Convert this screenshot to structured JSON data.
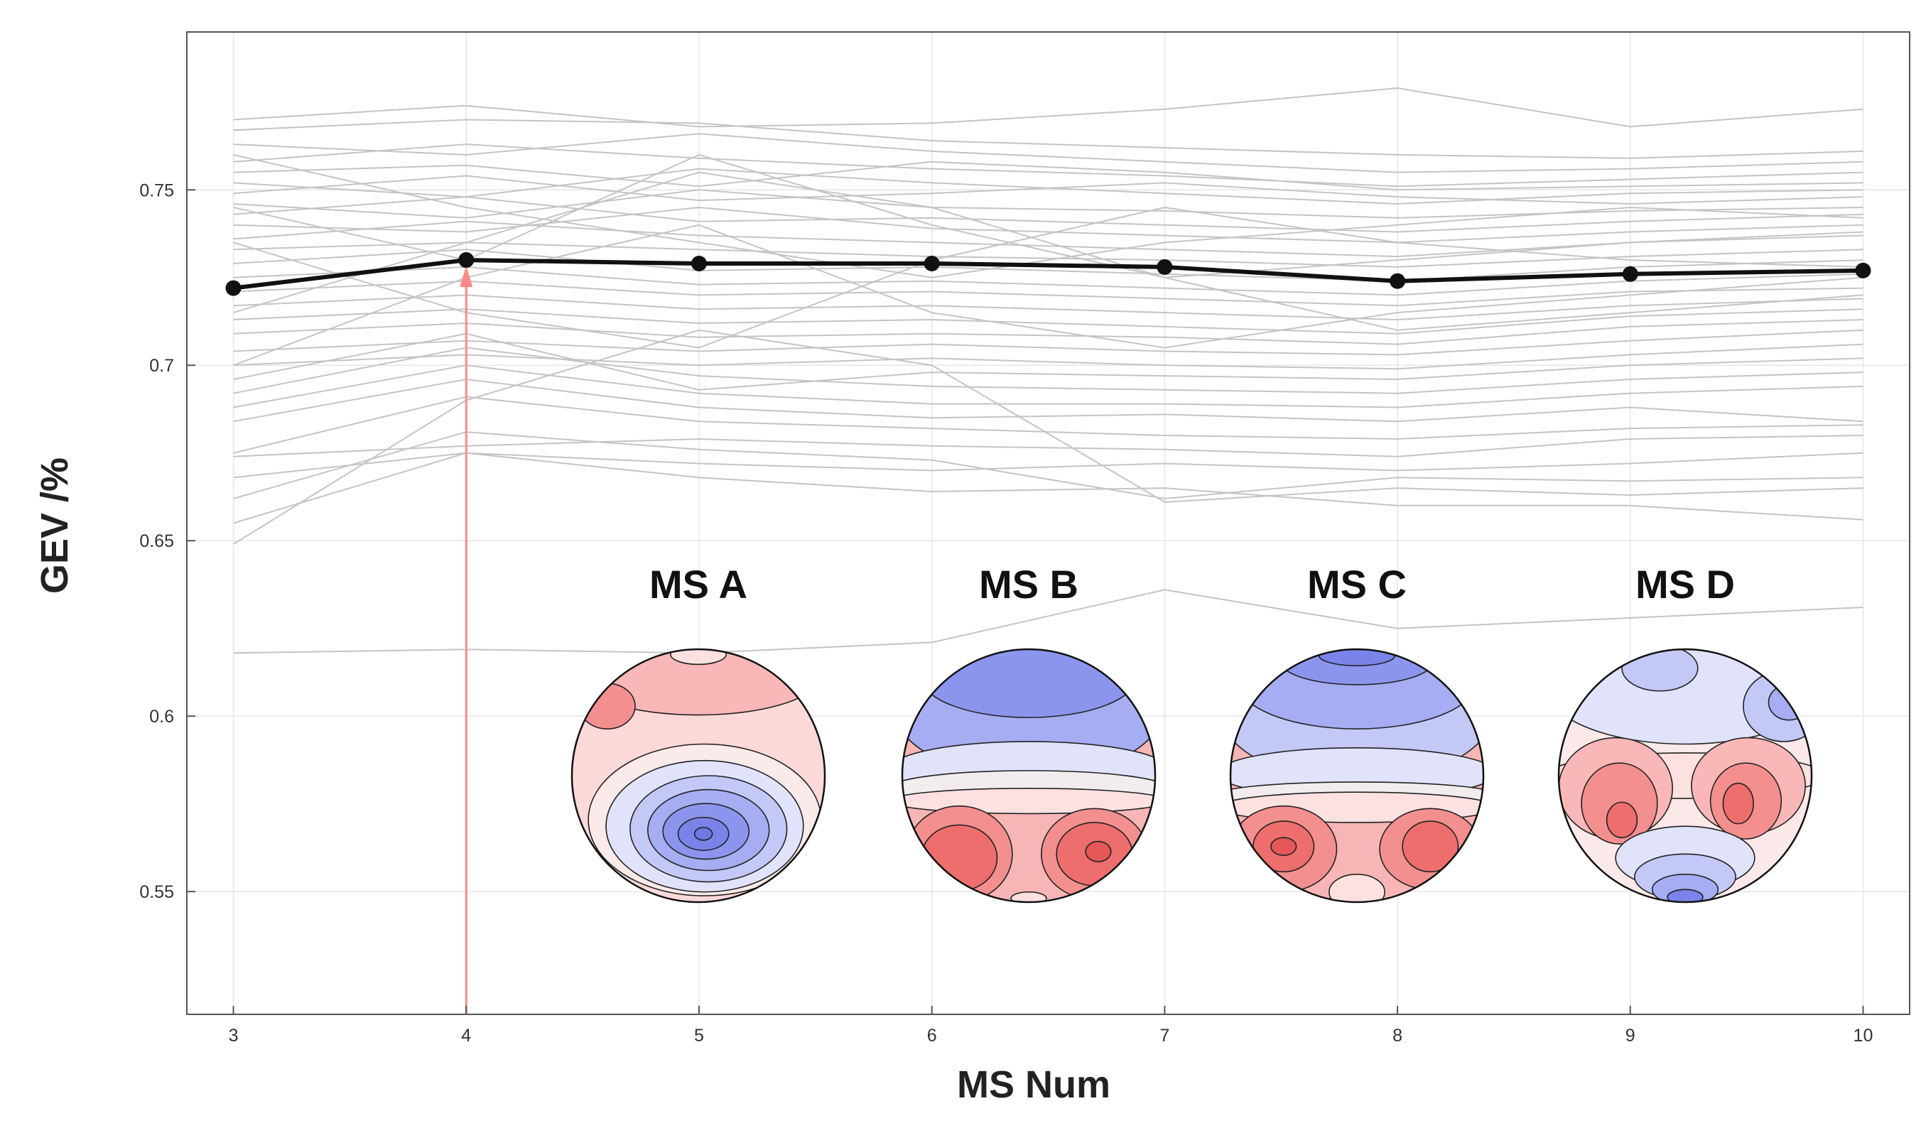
{
  "chart_data": {
    "type": "line",
    "title": "",
    "xlabel": "MS Num",
    "ylabel": "GEV /%",
    "x": [
      3,
      4,
      5,
      6,
      7,
      8,
      9,
      10
    ],
    "xlim": [
      2.8,
      10.2
    ],
    "ylim": [
      0.515,
      0.795
    ],
    "yticks": [
      0.55,
      0.6,
      0.65,
      0.7,
      0.75
    ],
    "ytick_labels": [
      "0.55",
      "0.6",
      "0.65",
      "0.7",
      "0.75"
    ],
    "xtick_labels": [
      "3",
      "4",
      "5",
      "6",
      "7",
      "8",
      "9",
      "10"
    ],
    "grid": true,
    "mean_series": {
      "name": "mean",
      "color": "#111111",
      "values": [
        0.722,
        0.73,
        0.729,
        0.729,
        0.728,
        0.724,
        0.726,
        0.727
      ]
    },
    "subject_series_color": "#c4c4c4",
    "subject_series": [
      [
        0.77,
        0.774,
        0.768,
        0.769,
        0.773,
        0.779,
        0.768,
        0.773
      ],
      [
        0.767,
        0.77,
        0.769,
        0.764,
        0.762,
        0.76,
        0.759,
        0.761
      ],
      [
        0.763,
        0.76,
        0.766,
        0.761,
        0.758,
        0.755,
        0.756,
        0.758
      ],
      [
        0.758,
        0.763,
        0.759,
        0.756,
        0.754,
        0.751,
        0.753,
        0.755
      ],
      [
        0.755,
        0.757,
        0.751,
        0.758,
        0.755,
        0.75,
        0.751,
        0.752
      ],
      [
        0.752,
        0.748,
        0.756,
        0.752,
        0.749,
        0.746,
        0.749,
        0.75
      ],
      [
        0.749,
        0.754,
        0.747,
        0.749,
        0.752,
        0.748,
        0.746,
        0.748
      ],
      [
        0.746,
        0.742,
        0.75,
        0.745,
        0.744,
        0.742,
        0.744,
        0.745
      ],
      [
        0.743,
        0.748,
        0.741,
        0.742,
        0.74,
        0.738,
        0.741,
        0.743
      ],
      [
        0.74,
        0.738,
        0.745,
        0.739,
        0.737,
        0.735,
        0.738,
        0.74
      ],
      [
        0.736,
        0.741,
        0.737,
        0.735,
        0.733,
        0.731,
        0.735,
        0.737
      ],
      [
        0.733,
        0.735,
        0.733,
        0.731,
        0.73,
        0.728,
        0.731,
        0.733
      ],
      [
        0.729,
        0.733,
        0.727,
        0.728,
        0.726,
        0.724,
        0.728,
        0.73
      ],
      [
        0.725,
        0.728,
        0.723,
        0.724,
        0.722,
        0.72,
        0.724,
        0.726
      ],
      [
        0.721,
        0.724,
        0.72,
        0.721,
        0.719,
        0.717,
        0.721,
        0.722
      ],
      [
        0.717,
        0.72,
        0.716,
        0.717,
        0.715,
        0.713,
        0.717,
        0.719
      ],
      [
        0.713,
        0.716,
        0.712,
        0.713,
        0.711,
        0.709,
        0.714,
        0.716
      ],
      [
        0.709,
        0.712,
        0.708,
        0.709,
        0.708,
        0.706,
        0.711,
        0.713
      ],
      [
        0.704,
        0.707,
        0.704,
        0.706,
        0.704,
        0.703,
        0.707,
        0.71
      ],
      [
        0.7,
        0.703,
        0.7,
        0.702,
        0.7,
        0.699,
        0.703,
        0.706
      ],
      [
        0.696,
        0.709,
        0.693,
        0.698,
        0.697,
        0.696,
        0.7,
        0.702
      ],
      [
        0.692,
        0.705,
        0.697,
        0.694,
        0.693,
        0.692,
        0.696,
        0.698
      ],
      [
        0.688,
        0.7,
        0.692,
        0.689,
        0.689,
        0.688,
        0.692,
        0.694
      ],
      [
        0.684,
        0.696,
        0.688,
        0.685,
        0.686,
        0.684,
        0.688,
        0.684
      ],
      [
        0.675,
        0.691,
        0.684,
        0.682,
        0.68,
        0.679,
        0.682,
        0.683
      ],
      [
        0.674,
        0.677,
        0.679,
        0.677,
        0.676,
        0.674,
        0.679,
        0.68
      ],
      [
        0.668,
        0.675,
        0.672,
        0.67,
        0.672,
        0.67,
        0.672,
        0.675
      ],
      [
        0.662,
        0.681,
        0.676,
        0.673,
        0.662,
        0.668,
        0.667,
        0.668
      ],
      [
        0.655,
        0.675,
        0.668,
        0.664,
        0.665,
        0.66,
        0.66,
        0.656
      ],
      [
        0.649,
        0.69,
        0.71,
        0.7,
        0.661,
        0.665,
        0.663,
        0.665
      ],
      [
        0.618,
        0.619,
        0.618,
        0.621,
        0.636,
        0.625,
        0.628,
        0.631
      ],
      [
        0.7,
        0.725,
        0.74,
        0.715,
        0.705,
        0.715,
        0.72,
        0.725
      ],
      [
        0.735,
        0.715,
        0.705,
        0.73,
        0.745,
        0.735,
        0.73,
        0.728
      ],
      [
        0.76,
        0.745,
        0.735,
        0.725,
        0.735,
        0.74,
        0.745,
        0.742
      ],
      [
        0.715,
        0.735,
        0.755,
        0.745,
        0.725,
        0.73,
        0.735,
        0.738
      ],
      [
        0.745,
        0.73,
        0.76,
        0.74,
        0.725,
        0.71,
        0.715,
        0.72
      ]
    ],
    "annotation": {
      "type": "arrow",
      "x": 4,
      "y": 0.73,
      "color": "#ff8888"
    },
    "insets": [
      {
        "title": "MS A",
        "pattern": "A"
      },
      {
        "title": "MS B",
        "pattern": "B"
      },
      {
        "title": "MS C",
        "pattern": "C"
      },
      {
        "title": "MS D",
        "pattern": "D"
      }
    ]
  }
}
